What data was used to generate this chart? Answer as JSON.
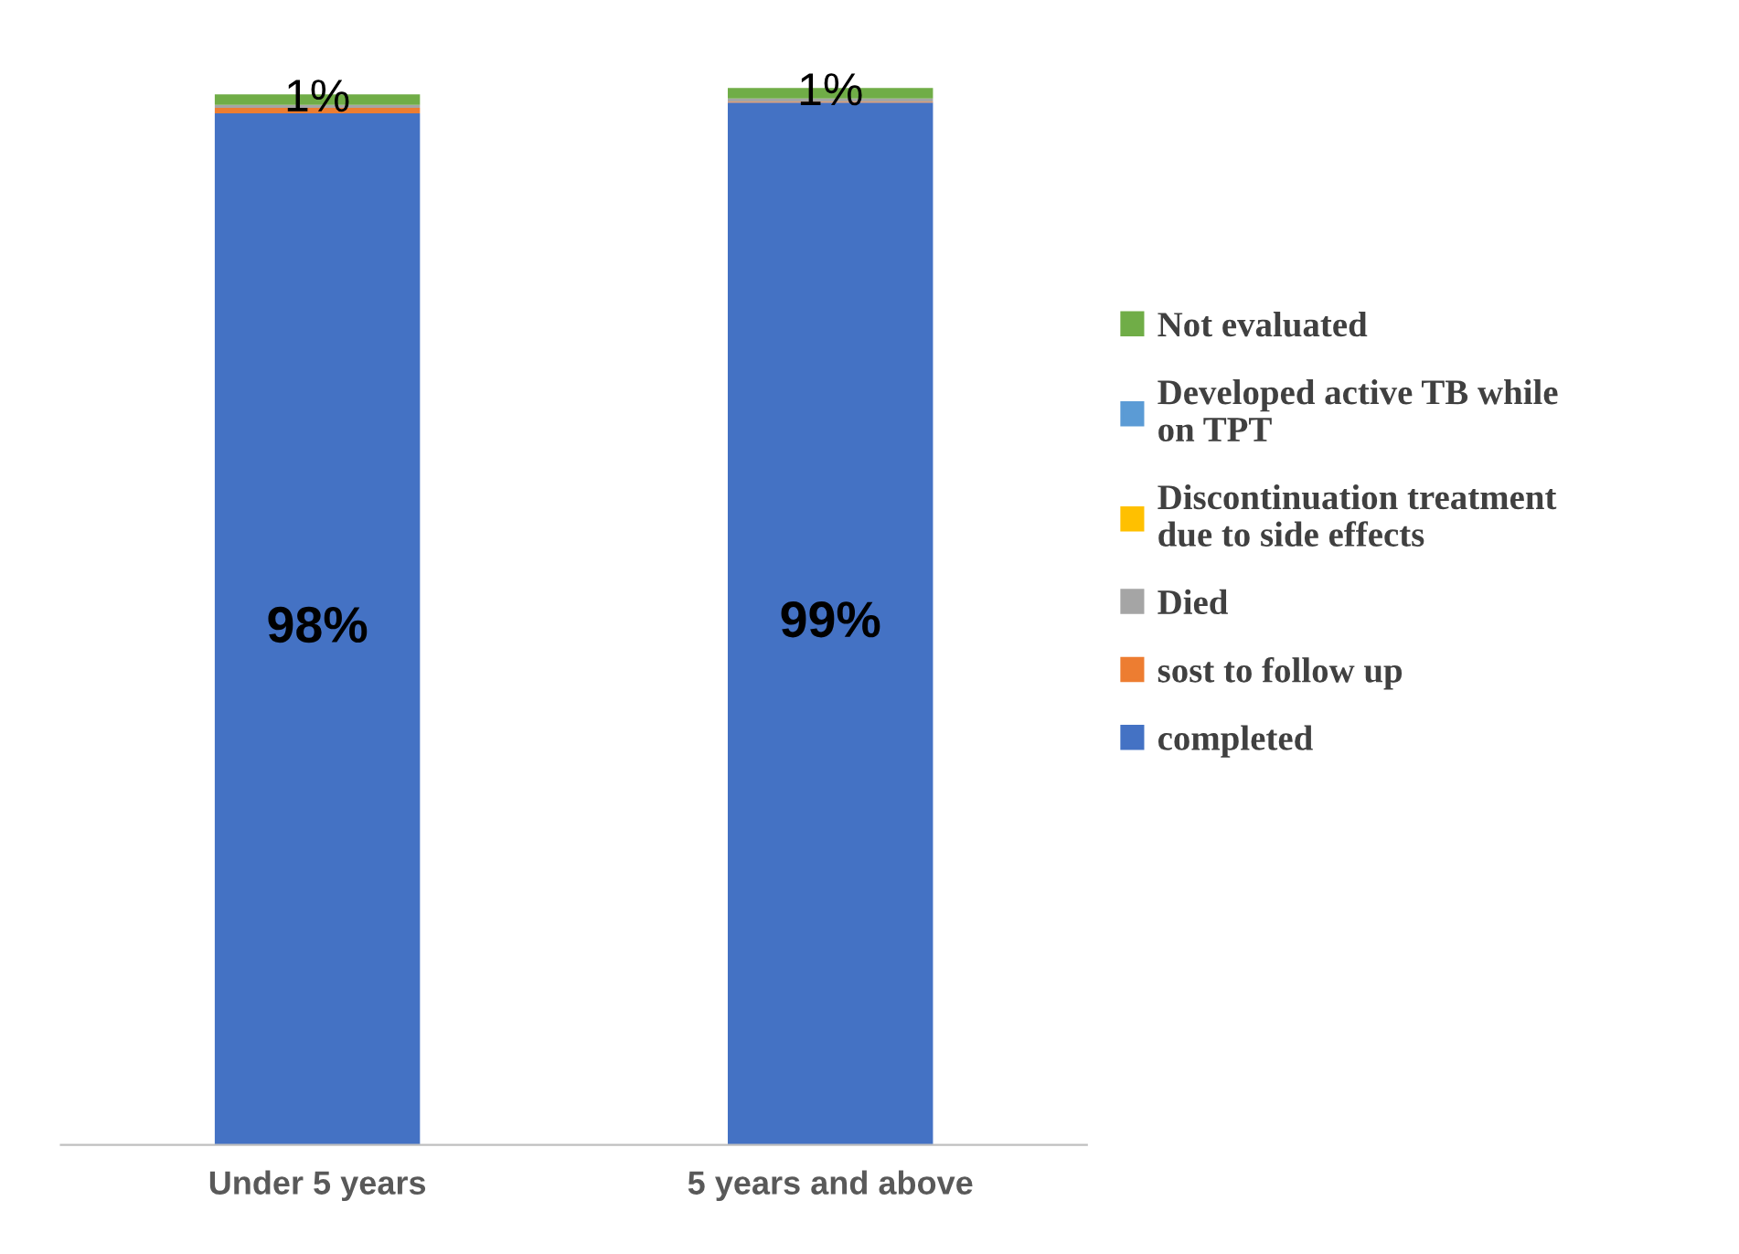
{
  "chart_data": {
    "type": "bar",
    "stacked": true,
    "categories": [
      "Under 5 years",
      "5 years and above"
    ],
    "series": [
      {
        "name": "completed",
        "color": "#4472c4",
        "values": [
          98,
          99
        ],
        "value_labels": [
          "98%",
          "99%"
        ]
      },
      {
        "name": "sost to follow up",
        "color": "#ed7d31",
        "values": [
          0.5,
          0.1
        ]
      },
      {
        "name": "Died",
        "color": "#a5a5a5",
        "values": [
          0.3,
          0.3
        ]
      },
      {
        "name": "Discontinuation treatment due to side effects",
        "color": "#ffc000",
        "values": [
          0,
          0
        ]
      },
      {
        "name": "Developed active TB while on TPT",
        "color": "#5b9bd5",
        "values": [
          0,
          0
        ]
      },
      {
        "name": "Not evaluated",
        "color": "#70ad47",
        "values": [
          1,
          1
        ],
        "value_labels": [
          "1%",
          "1%"
        ]
      }
    ],
    "legend": "right"
  }
}
